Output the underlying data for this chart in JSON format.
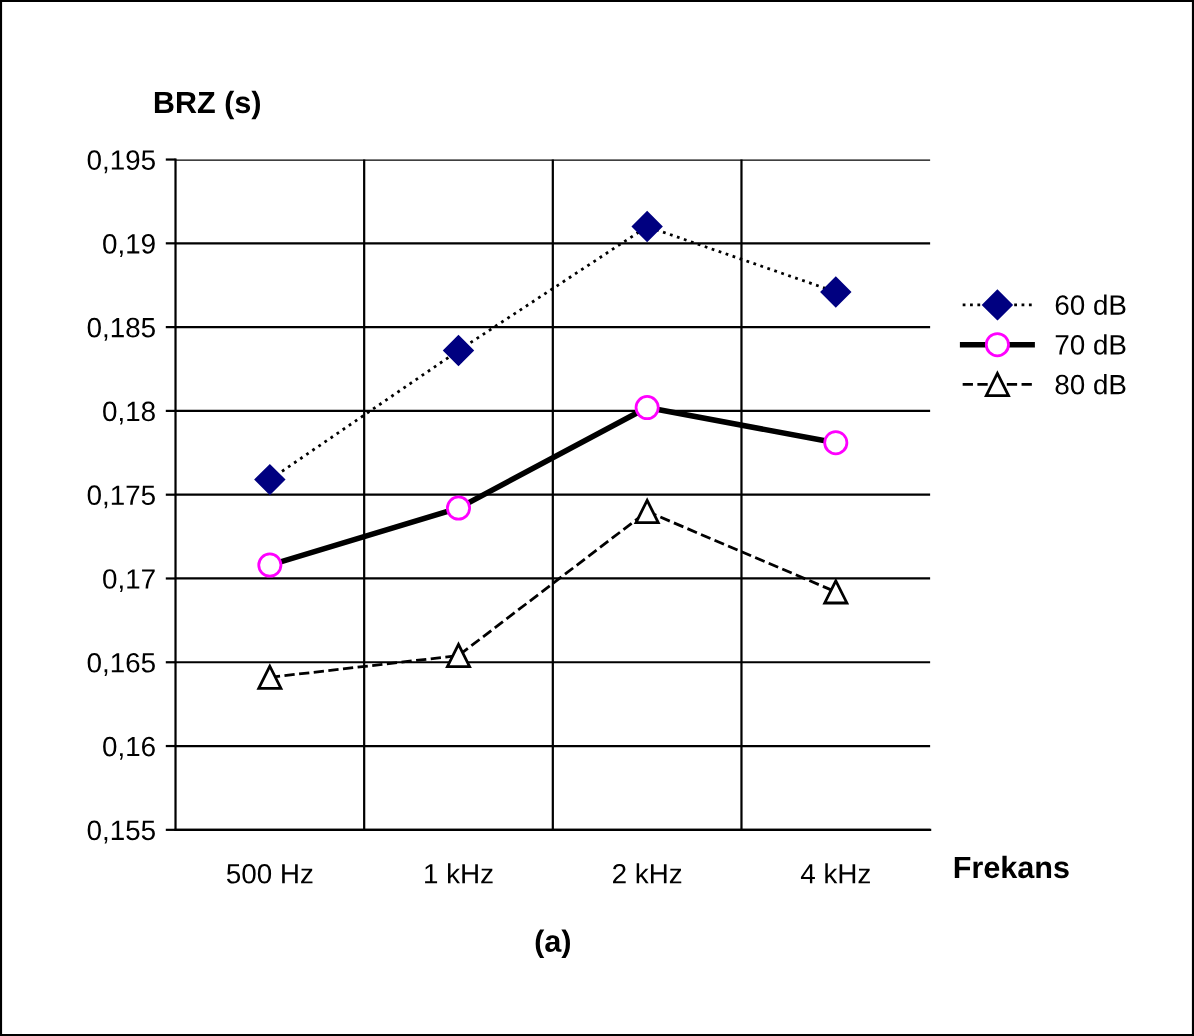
{
  "chart_data": {
    "type": "line",
    "xlabel": "Frekans",
    "ylabel": "BRZ (s)",
    "categories": [
      "500 Hz",
      "1 kHz",
      "2 kHz",
      "4 kHz"
    ],
    "series": [
      {
        "name": "60 dB",
        "color": "#000080",
        "marker": "diamond",
        "line_style": "dotted",
        "values": [
          0.1759,
          0.1836,
          0.191,
          0.1871
        ]
      },
      {
        "name": "70 dB",
        "color": "#ff00ff",
        "marker": "circle",
        "line_style": "solid",
        "values": [
          0.1708,
          0.1742,
          0.1802,
          0.1781
        ]
      },
      {
        "name": "80 dB",
        "color": "#000000",
        "marker": "triangle",
        "line_style": "dashed",
        "values": [
          0.1641,
          0.1654,
          0.174,
          0.1692
        ]
      }
    ],
    "ylim": [
      0.155,
      0.195
    ],
    "yticks": [
      {
        "value": 0.155,
        "label": "0,155"
      },
      {
        "value": 0.16,
        "label": "0,16"
      },
      {
        "value": 0.165,
        "label": "0,165"
      },
      {
        "value": 0.17,
        "label": "0,17"
      },
      {
        "value": 0.175,
        "label": "0,175"
      },
      {
        "value": 0.18,
        "label": "0,18"
      },
      {
        "value": 0.185,
        "label": "0,185"
      },
      {
        "value": 0.19,
        "label": "0,19"
      },
      {
        "value": 0.195,
        "label": "0,195"
      }
    ],
    "grid": true,
    "legend": "right",
    "annotations": [
      "(a)"
    ]
  }
}
